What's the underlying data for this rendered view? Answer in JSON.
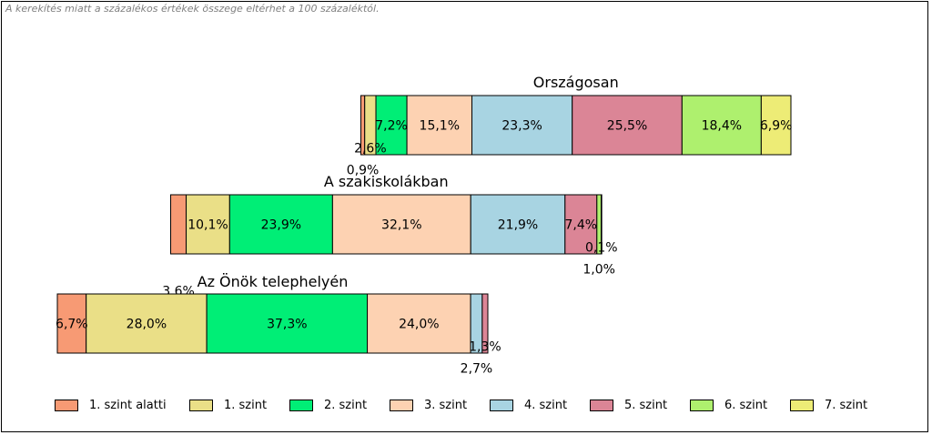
{
  "note": "A kerekítés miatt a  százalékos értékek összege eltérhet a 100 százaléktól.",
  "colors": [
    "#F79A74",
    "#EADF87",
    "#00EE76",
    "#FDD2B2",
    "#A8D4E2",
    "#DB8596",
    "#AEF06E",
    "#EDEC76"
  ],
  "legend": [
    "1. szint alatti",
    "1. szint",
    "2. szint",
    "3. szint",
    "4. szint",
    "5. szint",
    "6. szint",
    "7. szint"
  ],
  "chart_data": {
    "type": "bar",
    "stacked": true,
    "orientation": "horizontal",
    "categories": [
      "Országosan",
      "A szakiskolákban",
      "Az Önök telephelyén"
    ],
    "series": [
      {
        "name": "1. szint alatti",
        "values": [
          0.9,
          3.6,
          6.7
        ],
        "labels": [
          "0,9%",
          "3,6%",
          "6,7%"
        ]
      },
      {
        "name": "1. szint",
        "values": [
          2.6,
          10.1,
          28.0
        ],
        "labels": [
          "2,6%",
          "10,1%",
          "28,0%"
        ]
      },
      {
        "name": "2. szint",
        "values": [
          7.2,
          23.9,
          37.3
        ],
        "labels": [
          "7,2%",
          "23,9%",
          "37,3%"
        ]
      },
      {
        "name": "3. szint",
        "values": [
          15.1,
          32.1,
          24.0
        ],
        "labels": [
          "15,1%",
          "32,1%",
          "24,0%"
        ]
      },
      {
        "name": "4. szint",
        "values": [
          23.3,
          21.9,
          2.7
        ],
        "labels": [
          "23,3%",
          "21,9%",
          "2,7%"
        ]
      },
      {
        "name": "5. szint",
        "values": [
          25.5,
          7.4,
          1.3
        ],
        "labels": [
          "25,5%",
          "7,4%",
          "1,3%"
        ]
      },
      {
        "name": "6. szint",
        "values": [
          18.4,
          1.0,
          null
        ],
        "labels": [
          "18,4%",
          "1,0%",
          ""
        ]
      },
      {
        "name": "7. szint",
        "values": [
          6.9,
          0.1,
          null
        ],
        "labels": [
          "6,9%",
          "0,1%",
          ""
        ]
      }
    ],
    "legend_position": "bottom",
    "grid": false
  }
}
